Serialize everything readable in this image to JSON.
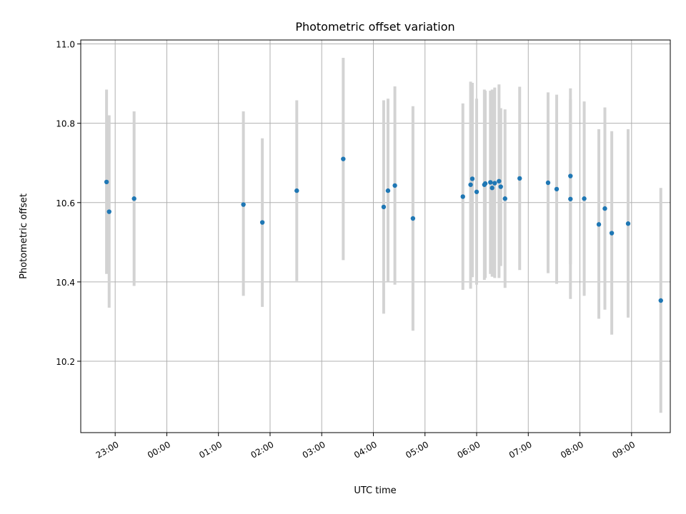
{
  "chart_data": {
    "type": "scatter",
    "title": "Photometric offset variation",
    "xlabel": "UTC time",
    "ylabel": "Photometric offset",
    "grid": true,
    "ylim": [
      10.02,
      11.01
    ],
    "xlim": [
      "22:20",
      "09:45"
    ],
    "x_ticks": [
      "23:00",
      "00:00",
      "01:00",
      "02:00",
      "03:00",
      "04:00",
      "05:00",
      "06:00",
      "07:00",
      "08:00",
      "09:00"
    ],
    "y_ticks": [
      10.2,
      10.4,
      10.6,
      10.8,
      11.0
    ],
    "y_tick_labels": [
      "10.2",
      "10.4",
      "10.6",
      "10.8",
      "11.0"
    ],
    "errorbar_color": "#d3d3d3",
    "marker_color": "#1f77b4",
    "points": [
      {
        "x": "22:50",
        "y": 10.652,
        "ylow": 10.42,
        "yhigh": 10.885
      },
      {
        "x": "22:53",
        "y": 10.577,
        "ylow": 10.335,
        "yhigh": 10.82
      },
      {
        "x": "23:22",
        "y": 10.61,
        "ylow": 10.39,
        "yhigh": 10.83
      },
      {
        "x": "01:29",
        "y": 10.595,
        "ylow": 10.365,
        "yhigh": 10.83
      },
      {
        "x": "01:51",
        "y": 10.55,
        "ylow": 10.337,
        "yhigh": 10.762
      },
      {
        "x": "02:31",
        "y": 10.63,
        "ylow": 10.402,
        "yhigh": 10.858
      },
      {
        "x": "03:25",
        "y": 10.71,
        "ylow": 10.455,
        "yhigh": 10.965
      },
      {
        "x": "04:12",
        "y": 10.589,
        "ylow": 10.32,
        "yhigh": 10.858
      },
      {
        "x": "04:17",
        "y": 10.63,
        "ylow": 10.4,
        "yhigh": 10.862
      },
      {
        "x": "04:25",
        "y": 10.643,
        "ylow": 10.393,
        "yhigh": 10.893
      },
      {
        "x": "04:46",
        "y": 10.56,
        "ylow": 10.277,
        "yhigh": 10.843
      },
      {
        "x": "05:44",
        "y": 10.615,
        "ylow": 10.38,
        "yhigh": 10.85
      },
      {
        "x": "05:53",
        "y": 10.645,
        "ylow": 10.383,
        "yhigh": 10.905
      },
      {
        "x": "05:55",
        "y": 10.66,
        "ylow": 10.412,
        "yhigh": 10.902
      },
      {
        "x": "06:00",
        "y": 10.627,
        "ylow": 10.393,
        "yhigh": 10.862
      },
      {
        "x": "06:09",
        "y": 10.645,
        "ylow": 10.405,
        "yhigh": 10.885
      },
      {
        "x": "06:10",
        "y": 10.648,
        "ylow": 10.41,
        "yhigh": 10.882
      },
      {
        "x": "06:16",
        "y": 10.651,
        "ylow": 10.42,
        "yhigh": 10.882
      },
      {
        "x": "06:18",
        "y": 10.637,
        "ylow": 10.413,
        "yhigh": 10.885
      },
      {
        "x": "06:21",
        "y": 10.649,
        "ylow": 10.41,
        "yhigh": 10.89
      },
      {
        "x": "06:26",
        "y": 10.654,
        "ylow": 10.41,
        "yhigh": 10.898
      },
      {
        "x": "06:28",
        "y": 10.64,
        "ylow": 10.44,
        "yhigh": 10.838
      },
      {
        "x": "06:33",
        "y": 10.61,
        "ylow": 10.385,
        "yhigh": 10.835
      },
      {
        "x": "06:50",
        "y": 10.661,
        "ylow": 10.43,
        "yhigh": 10.892
      },
      {
        "x": "07:23",
        "y": 10.65,
        "ylow": 10.422,
        "yhigh": 10.878
      },
      {
        "x": "07:33",
        "y": 10.634,
        "ylow": 10.395,
        "yhigh": 10.872
      },
      {
        "x": "07:49",
        "y": 10.667,
        "ylow": 10.445,
        "yhigh": 10.888
      },
      {
        "x": "07:49",
        "y": 10.609,
        "ylow": 10.357,
        "yhigh": 10.86
      },
      {
        "x": "08:05",
        "y": 10.61,
        "ylow": 10.365,
        "yhigh": 10.855
      },
      {
        "x": "08:22",
        "y": 10.545,
        "ylow": 10.307,
        "yhigh": 10.785
      },
      {
        "x": "08:29",
        "y": 10.585,
        "ylow": 10.33,
        "yhigh": 10.84
      },
      {
        "x": "08:37",
        "y": 10.523,
        "ylow": 10.267,
        "yhigh": 10.78
      },
      {
        "x": "08:56",
        "y": 10.547,
        "ylow": 10.31,
        "yhigh": 10.785
      },
      {
        "x": "09:34",
        "y": 10.353,
        "ylow": 10.07,
        "yhigh": 10.637
      }
    ]
  }
}
